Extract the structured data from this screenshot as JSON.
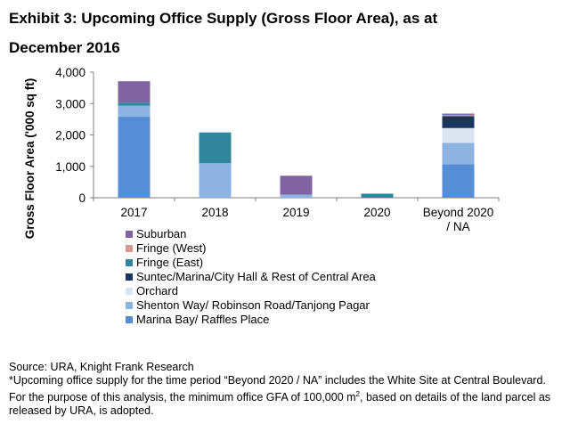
{
  "title": {
    "line1": "Exhibit 3: Upcoming Office Supply (Gross Floor Area), as at",
    "line2": "December 2016"
  },
  "chart_data": {
    "type": "bar",
    "stacked": true,
    "categories": [
      "2017",
      "2018",
      "2019",
      "2020",
      "Beyond 2020 / NA"
    ],
    "category_lines": [
      [
        "2017"
      ],
      [
        "2018"
      ],
      [
        "2019"
      ],
      [
        "2020"
      ],
      [
        "Beyond 2020",
        "/ NA"
      ]
    ],
    "ylabel": "Gross Floor Area ('000 sq ft)",
    "ylim": [
      0,
      4000
    ],
    "yticks": [
      0,
      1000,
      2000,
      3000,
      4000
    ],
    "ytick_labels": [
      "0",
      "1,000",
      "2,000",
      "3,000",
      "4,000"
    ],
    "grid": false,
    "legend_position": "below",
    "series": [
      {
        "name": "Marina Bay/ Raffles Place",
        "color": "#558ed5",
        "values": [
          2580,
          0,
          0,
          0,
          1070
        ]
      },
      {
        "name": "Shenton Way/ Robinson Road/Tanjong Pagar",
        "color": "#8db3e2",
        "values": [
          350,
          1100,
          100,
          0,
          680
        ]
      },
      {
        "name": "Orchard",
        "color": "#dbe5f1",
        "values": [
          0,
          0,
          0,
          0,
          470
        ]
      },
      {
        "name": "Suntec/Marina/City Hall & Rest of Central Area",
        "color": "#17375e",
        "values": [
          0,
          0,
          0,
          0,
          380
        ]
      },
      {
        "name": "Fringe (East)",
        "color": "#31859c",
        "values": [
          100,
          980,
          0,
          130,
          0
        ]
      },
      {
        "name": "Fringe (West)",
        "color": "#d99694",
        "values": [
          0,
          0,
          0,
          0,
          40
        ]
      },
      {
        "name": "Suburban",
        "color": "#8064a2",
        "values": [
          680,
          0,
          600,
          0,
          40
        ]
      }
    ]
  },
  "legend_order": [
    "Suburban",
    "Fringe (West)",
    "Fringe (East)",
    "Suntec/Marina/City Hall & Rest of Central Area",
    "Orchard",
    "Shenton Way/ Robinson Road/Tanjong Pagar",
    "Marina Bay/ Raffles Place"
  ],
  "footnote": {
    "source": "Source: URA, Knight Frank Research",
    "note_part1": "*Upcoming office supply for the time period “Beyond 2020 / NA” includes the White Site at Central Boulevard. For the purpose of this analysis, the minimum office GFA of 100,000 m",
    "note_sup": "2",
    "note_part2": ", based on details of the land parcel as released by URA, is adopted."
  }
}
